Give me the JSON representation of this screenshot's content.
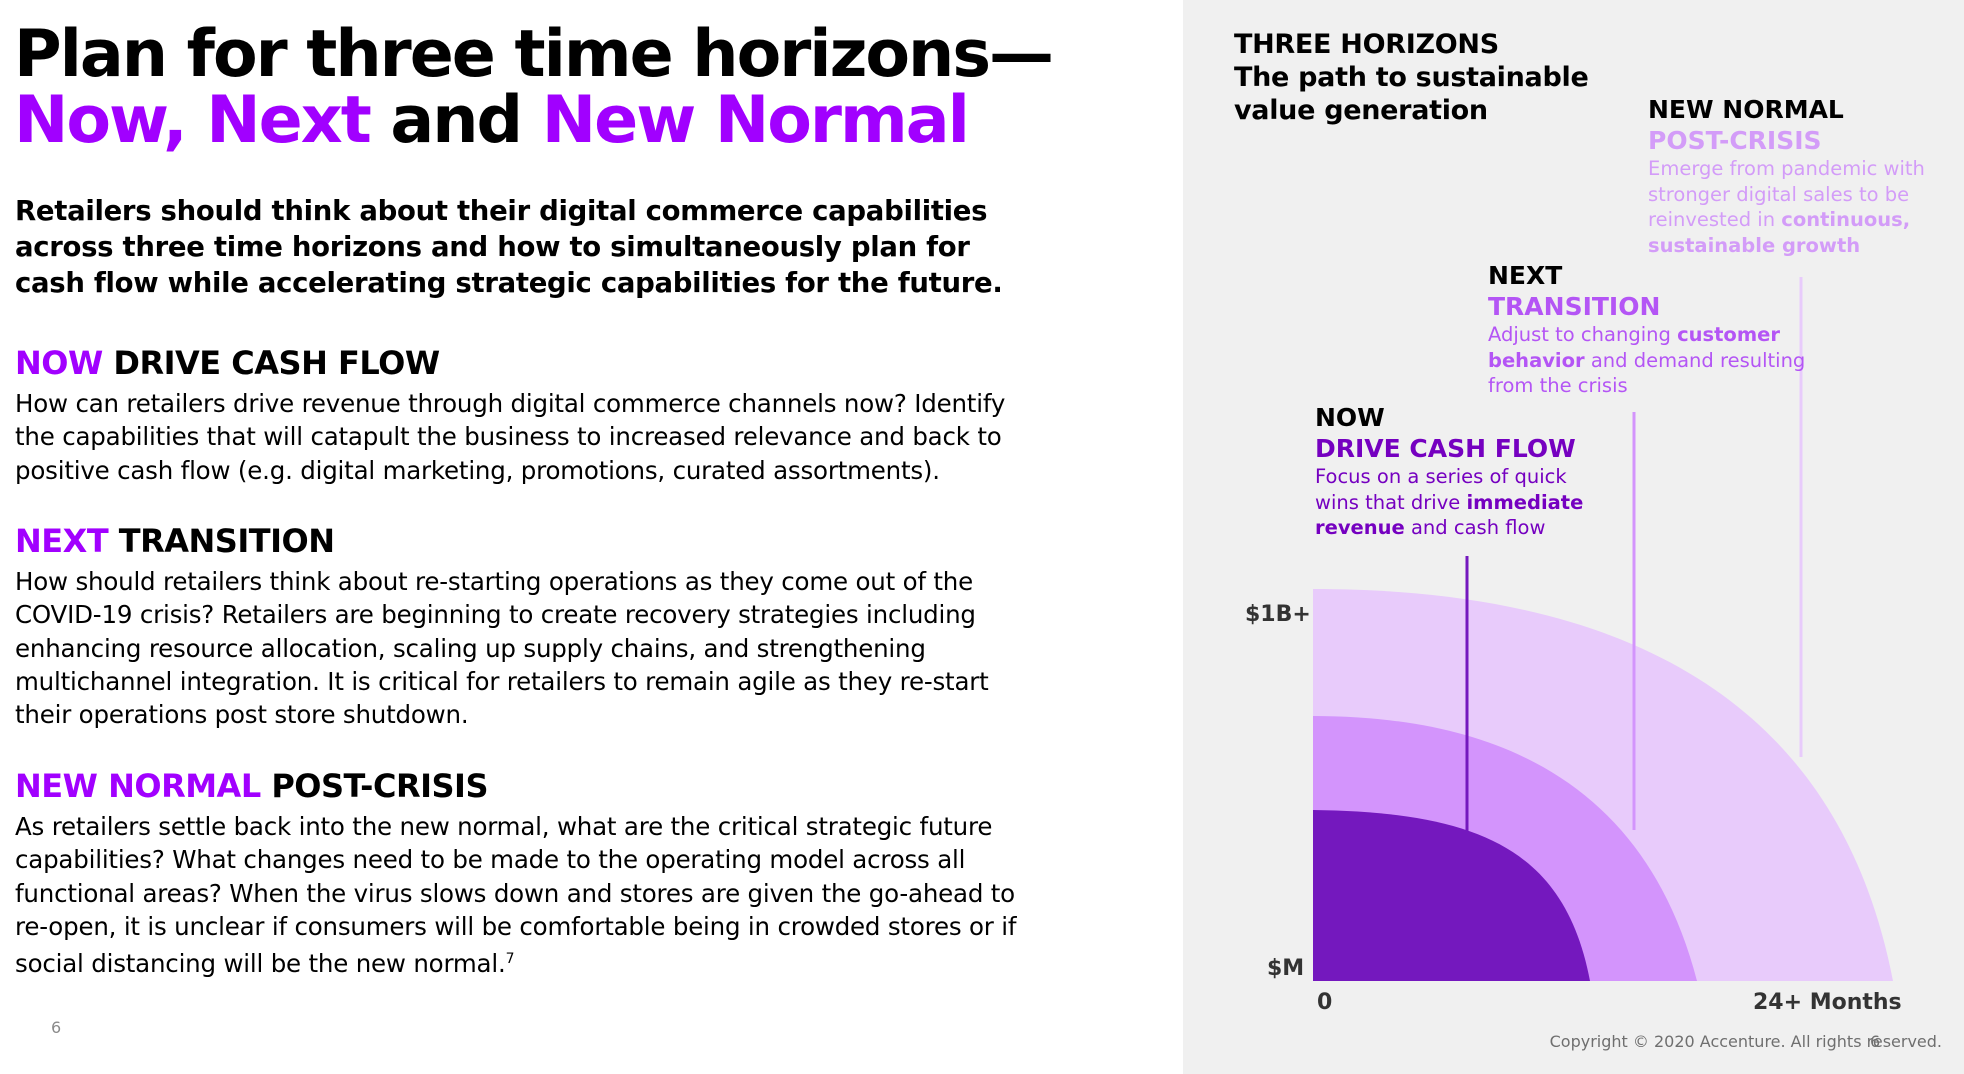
{
  "title": {
    "line1": "Plan for three time horizons—",
    "now": "Now,",
    "next": "Next",
    "and": "and",
    "new_normal": "New Normal"
  },
  "intro": "Retailers should think about their digital commerce capabilities across three time horizons and how to simultaneously plan for cash flow while accelerating strategic capabilities for the future.",
  "sections": [
    {
      "tag": "NOW",
      "heading": "DRIVE CASH FLOW",
      "body": "How can retailers drive revenue through digital commerce channels now? Identify the capabilities that will catapult the business to increased relevance and back to positive cash flow (e.g. digital marketing, promotions, curated assortments)."
    },
    {
      "tag": "NEXT",
      "heading": "TRANSITION",
      "body": "How should retailers think about re-starting operations as they come out of the COVID-19 crisis? Retailers are beginning to create recovery strategies including enhancing resource allocation, scaling up supply chains, and strengthening multichannel integration. It is critical for retailers to remain agile as they re-start their operations post store shutdown."
    },
    {
      "tag": "NEW NORMAL",
      "heading": "POST-CRISIS",
      "body": "As retailers settle back into the new normal, what are the critical strategic future capabilities? What changes need to be made to the operating model across all functional areas? When the virus slows down and stores are given the go-ahead to re-open, it is unclear if consumers will be comfortable being in crowded stores or if social distancing will be the new normal.",
      "footnote": "7"
    }
  ],
  "page_number": "6",
  "diagram": {
    "title_line1": "THREE HORIZONS",
    "title_line2": "The path to sustainable",
    "title_line3": "value generation",
    "horizons": [
      {
        "label": "NOW",
        "sub": "DRIVE CASH FLOW",
        "desc_pre": "Focus on a series of quick wins that drive ",
        "desc_bold": "immediate revenue",
        "desc_post": " and cash flow",
        "color": "#7418be",
        "text_color": "#7500c0"
      },
      {
        "label": "NEXT",
        "sub": "TRANSITION",
        "desc_pre": "Adjust to changing ",
        "desc_bold": "customer behavior",
        "desc_post": " and demand resulting from the crisis",
        "color": "#d394fc",
        "text_color": "#b455f5"
      },
      {
        "label": "NEW NORMAL",
        "sub": "POST-CRISIS",
        "desc_pre": "Emerge from pandemic with stronger digital sales to be reinvested in ",
        "desc_bold": "continuous, sustainable growth",
        "desc_post": "",
        "color": "#e8cbfb",
        "text_color": "#d39cf8"
      }
    ],
    "y_top_label": "$1B+",
    "y_bottom_label": "$M",
    "x_start_label": "0",
    "x_end_label": "24+ Months"
  },
  "copyright": "Copyright © 2020 Accenture. All rights reserved.",
  "corner_page_number": "6"
}
